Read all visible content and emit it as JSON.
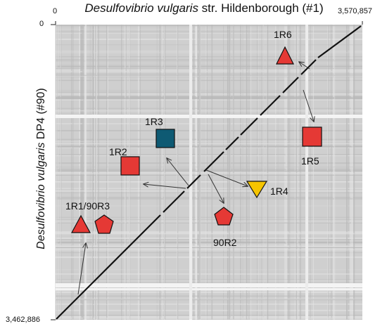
{
  "figure": {
    "title_species": "Desulfovibrio vulgaris",
    "title_rest": " str. Hildenborough (#1)",
    "ylabel_species": "Desulfovibrio vulgaris",
    "ylabel_rest": " DP4 (#90)",
    "x_start": "0",
    "x_end": "3,570,857",
    "y_start": "0",
    "y_end": "3,462,886"
  },
  "regions": [
    {
      "label": "1R1/90R3",
      "shapes": [
        "triangle",
        "pentagon"
      ],
      "color": "#e53935"
    },
    {
      "label": "1R2",
      "shapes": [
        "square"
      ],
      "color": "#e53935"
    },
    {
      "label": "1R3",
      "shapes": [
        "square"
      ],
      "color": "#0e5a73"
    },
    {
      "label": "1R4",
      "shapes": [
        "triangle-down"
      ],
      "color": "#f5c400"
    },
    {
      "label": "90R2",
      "shapes": [
        "pentagon"
      ],
      "color": "#e53935"
    },
    {
      "label": "1R5",
      "shapes": [
        "square"
      ],
      "color": "#e53935"
    },
    {
      "label": "1R6",
      "shapes": [
        "triangle"
      ],
      "color": "#e53935"
    }
  ],
  "colors": {
    "red": "#e53935",
    "blue": "#0e5a73",
    "yellow": "#f5c400",
    "diagonal": "#111111",
    "plot_background": "#cfcfcf"
  }
}
